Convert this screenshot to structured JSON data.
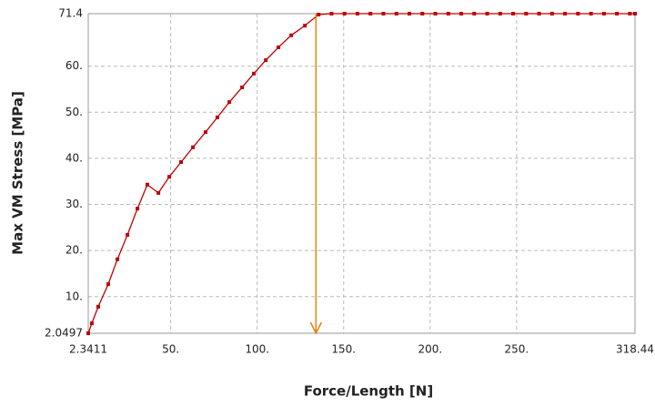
{
  "chart_data": {
    "type": "line",
    "x_label": "Force/Length [N]",
    "y_label": "Max VM Stress [MPa]",
    "x": [
      2.3411,
      4.4,
      8.1,
      13.9,
      19.2,
      25,
      30.8,
      36.5,
      42.9,
      49.2,
      56,
      62.9,
      70.2,
      77,
      83.9,
      91.3,
      98.1,
      105,
      112.3,
      119.7,
      127.6,
      135.5,
      143,
      150.5,
      158,
      165.5,
      173,
      180.5,
      188,
      195.5,
      203,
      210.5,
      218,
      225.5,
      233,
      240.5,
      248,
      255.5,
      263,
      270.5,
      278,
      285.5,
      293,
      300.5,
      308,
      315.5,
      318.44
    ],
    "values": [
      2.0497,
      4.2,
      7.8,
      12.7,
      18.1,
      23.4,
      29.1,
      34.3,
      32.5,
      36.0,
      39.2,
      42.4,
      45.7,
      48.9,
      52.2,
      55.4,
      58.4,
      61.3,
      64.1,
      66.7,
      68.8,
      71.2,
      71.4,
      71.4,
      71.4,
      71.4,
      71.4,
      71.4,
      71.4,
      71.4,
      71.4,
      71.4,
      71.4,
      71.4,
      71.4,
      71.4,
      71.4,
      71.4,
      71.4,
      71.4,
      71.4,
      71.4,
      71.4,
      71.4,
      71.4,
      71.4,
      71.4
    ],
    "color": "#c00000",
    "xlim": [
      2.3411,
      318.44
    ],
    "xticks": [
      2.3411,
      {
        "value": 50,
        "label": "50."
      },
      {
        "value": 100,
        "label": "100."
      },
      {
        "value": 150,
        "label": "150."
      },
      {
        "value": 200,
        "label": "200."
      },
      {
        "value": 250,
        "label": "250."
      },
      318.44
    ],
    "ylim": [
      2.0497,
      71.4
    ],
    "yticks": [
      2.0497,
      {
        "value": 10,
        "label": "10."
      },
      {
        "value": 20,
        "label": "20."
      },
      {
        "value": 30,
        "label": "30."
      },
      {
        "value": 40,
        "label": "40."
      },
      {
        "value": 50,
        "label": "50."
      },
      {
        "value": 60,
        "label": "60."
      },
      71.4
    ],
    "grid": true,
    "marker_line": {
      "x": 134,
      "color": "#e8820c"
    }
  }
}
